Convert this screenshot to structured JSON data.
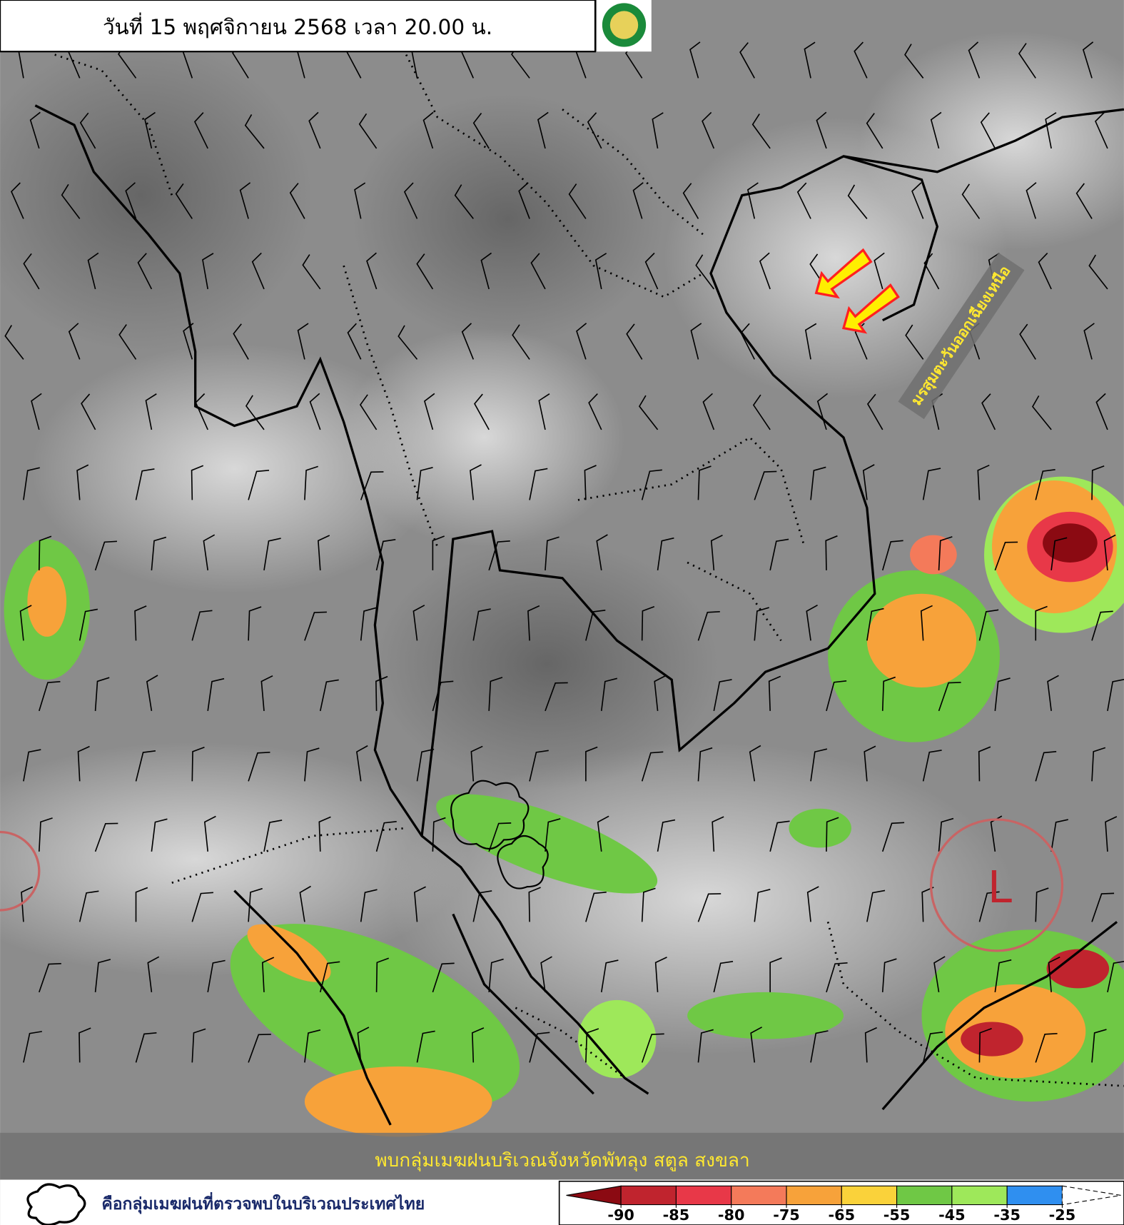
{
  "header": {
    "title": "วันที่ 15 พฤศจิกายน 2568 เวลา 20.00 น."
  },
  "annotations": {
    "monsoon": "มรสุมตะวันออกเฉียงเหนือ",
    "low_pressure": "L",
    "caption": "พบกลุ่มเมฆฝนบริเวณจังหวัดพัทลุง สตูล สงขลา"
  },
  "legend": {
    "cloud_symbol_text": "คือกลุ่มเมฆฝนที่ตรวจพบในบริเวณประเทศไทย",
    "colorbar": {
      "ticks": [
        -90,
        -85,
        -80,
        -75,
        -65,
        -55,
        -45,
        -35,
        -25
      ],
      "colors": [
        "#8b0a12",
        "#c0242e",
        "#e83848",
        "#f47a5a",
        "#f7a23a",
        "#fad23a",
        "#6fc845",
        "#9ee85a",
        "#2f8ff0",
        "#ffffff"
      ]
    }
  }
}
